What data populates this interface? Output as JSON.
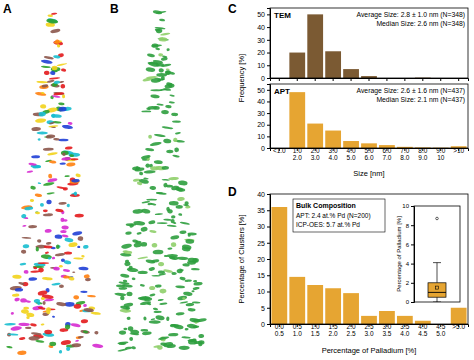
{
  "panel_labels": [
    "A",
    "B",
    "C",
    "D"
  ],
  "chart_data": [
    {
      "type": "bar",
      "title": "TEM",
      "annotations": [
        "Average Size: 2.8 ± 1.0 nm (N=348)",
        "Median Size: 2.6 nm (N=348)"
      ],
      "y_label": "Frequency [%]",
      "categories": [
        "<1.0",
        "1.0\n2.0",
        "2.0\n3.0",
        "3.0\n4.0",
        "4.0\n5.0",
        "5.0\n6.0",
        "6.0\n7.0",
        "7.0\n8.0",
        "8.0\n9.0",
        "9.0\n10",
        ">10"
      ],
      "values": [
        0,
        20,
        50,
        21,
        7,
        1.5,
        0,
        0,
        0.3,
        0,
        0
      ],
      "color": "#7b5a33",
      "ylim": [
        0,
        55
      ],
      "yticks": [
        0,
        10,
        20,
        30,
        40,
        50
      ],
      "tick_labels": "y"
    },
    {
      "type": "bar",
      "title": "APT",
      "annotations": [
        "Average Size: 2.6 ± 1.6 nm (N=437)",
        "Median Size: 2.1 nm (N=437)"
      ],
      "x_label": "Size [nm]",
      "categories": [
        "<1.0",
        "1.0\n2.0",
        "2.0\n3.0",
        "3.0\n4.0",
        "4.0\n5.0",
        "5.0\n6.0",
        "6.0\n7.0",
        "7.0\n8.0",
        "8.0\n9.0",
        "9.0\n10",
        ">10"
      ],
      "values": [
        0,
        48,
        21,
        15,
        6,
        4,
        2.5,
        1,
        0.5,
        0.3,
        1.5
      ],
      "color": "#e6a532",
      "ylim": [
        0,
        55
      ],
      "yticks": [
        0,
        10,
        20,
        30,
        40,
        50
      ]
    },
    {
      "type": "bar",
      "annotations": [
        "Bulk Composition",
        "APT: 2.4 at.% Pd (N=200)",
        "ICP-OES: 5.7 at.% Pd"
      ],
      "x_label": "Percentage of Palladium [%]",
      "y_label": "Percentage of Clusters [%]",
      "categories": [
        "0.0\n0.5",
        "0.5\n1.0",
        "1.0\n1.5",
        "1.5\n2.0",
        "2.0\n2.5",
        "2.5\n3.0",
        "3.0\n3.5",
        "3.5\n4.0",
        "4.0\n4.5",
        "4.5\n5.0",
        ">5.0"
      ],
      "values": [
        36,
        14.5,
        12,
        11,
        9.5,
        2.5,
        4,
        2.5,
        1,
        0,
        5
      ],
      "color": "#e6a532",
      "ylim": [
        0,
        40
      ],
      "yticks": [
        0,
        5,
        10,
        15,
        20,
        25,
        30,
        35,
        40
      ]
    },
    {
      "type": "box",
      "y_label": "Percentage of Palladium [%]",
      "boxes": [
        {
          "min": 0,
          "q1": 0.5,
          "median": 1.0,
          "q3": 2.0,
          "max": 4.1,
          "mean": 1.5,
          "outliers": [
            8.7
          ]
        }
      ],
      "color": "#e6a532",
      "ylim": [
        0,
        10
      ],
      "yticks": [
        0,
        2,
        4,
        6,
        8,
        10
      ],
      "tick_labels": "y"
    }
  ]
}
